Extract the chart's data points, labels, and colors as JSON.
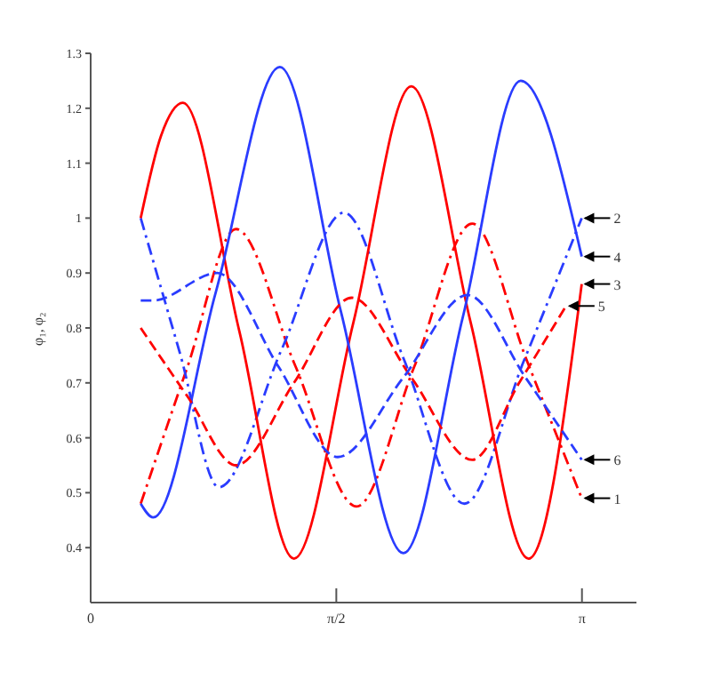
{
  "chart_data": {
    "type": "line",
    "ylabel": "φ₁, φ₂",
    "xlim": [
      0,
      3.49
    ],
    "xticks": [
      0,
      {
        "value": 1.5708,
        "label": "π/2"
      },
      {
        "value": 3.1416,
        "label": "π"
      }
    ],
    "ylim": [
      0.3,
      1.3
    ],
    "yticks": [
      0.4,
      0.5,
      0.6,
      0.7,
      0.8,
      0.9,
      1,
      1.1,
      1.2,
      1.3
    ],
    "grid": false,
    "legend": false,
    "marker": "none",
    "series": [
      {
        "name": "1",
        "color": "#ff0000",
        "line_style": "dotted",
        "x": [
          0.32,
          0.62,
          0.93,
          1.31,
          1.7,
          2.07,
          2.44,
          2.79,
          3.14
        ],
        "values": [
          0.48,
          0.73,
          0.98,
          0.73,
          0.475,
          0.73,
          0.99,
          0.74,
          0.49
        ]
      },
      {
        "name": "2",
        "color": "#2a3cff",
        "line_style": "dotted",
        "x": [
          0.32,
          0.57,
          0.82,
          1.22,
          1.62,
          2.0,
          2.39,
          2.77,
          3.14
        ],
        "values": [
          1.0,
          0.755,
          0.51,
          0.76,
          1.01,
          0.745,
          0.48,
          0.74,
          1.0
        ]
      },
      {
        "name": "3",
        "color": "#ff0000",
        "line_style": "solid",
        "x": [
          0.32,
          0.45,
          0.59,
          0.95,
          1.3,
          1.68,
          2.05,
          2.43,
          2.8,
          3.14
        ],
        "values": [
          1.0,
          1.15,
          1.21,
          0.795,
          0.38,
          0.81,
          1.24,
          0.81,
          0.38,
          0.88
        ]
      },
      {
        "name": "4",
        "color": "#2a3cff",
        "line_style": "solid",
        "x": [
          0.32,
          0.4,
          0.8,
          1.21,
          1.6,
          2.0,
          2.38,
          2.75,
          3.14
        ],
        "values": [
          0.48,
          0.455,
          0.865,
          1.275,
          0.83,
          0.39,
          0.82,
          1.25,
          0.93
        ]
      },
      {
        "name": "5",
        "color": "#ff0000",
        "line_style": "dashed",
        "x": [
          0.32,
          0.62,
          0.93,
          1.3,
          1.67,
          2.05,
          2.44,
          2.74,
          3.04
        ],
        "values": [
          0.8,
          0.675,
          0.55,
          0.7,
          0.855,
          0.71,
          0.56,
          0.7,
          0.84
        ]
      },
      {
        "name": "6",
        "color": "#2a3cff",
        "line_style": "dashed",
        "x": [
          0.32,
          0.4,
          0.81,
          1.2,
          1.58,
          2.0,
          2.41,
          2.78,
          3.14
        ],
        "values": [
          0.85,
          0.85,
          0.9,
          0.73,
          0.565,
          0.71,
          0.86,
          0.71,
          0.56
        ]
      }
    ]
  }
}
